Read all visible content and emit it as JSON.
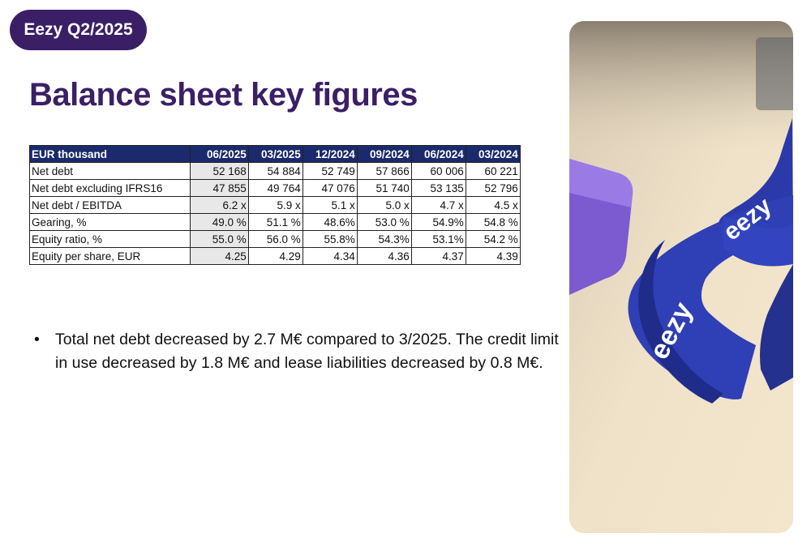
{
  "header": {
    "badge": "Eezy Q2/2025"
  },
  "title": "Balance sheet key figures",
  "table": {
    "columns": [
      "EUR thousand",
      "06/2025",
      "03/2025",
      "12/2024",
      "09/2024",
      "06/2024",
      "03/2024"
    ],
    "rows": [
      {
        "label": "Net debt",
        "values": [
          "52 168",
          "54 884",
          "52 749",
          "57 866",
          "60 006",
          "60 221"
        ]
      },
      {
        "label": "Net debt excluding IFRS16",
        "values": [
          "47 855",
          "49 764",
          "47 076",
          "51 740",
          "53 135",
          "52 796"
        ]
      },
      {
        "label": "Net debt / EBITDA",
        "values": [
          "6.2 x",
          "5.9 x",
          "5.1 x",
          "5.0 x",
          "4.7 x",
          "4.5 x"
        ]
      },
      {
        "label": "Gearing, %",
        "values": [
          "49.0 %",
          "51.1 %",
          "48.6%",
          "53.0 %",
          "54.9%",
          "54.8 %"
        ]
      },
      {
        "label": "Equity ratio, %",
        "values": [
          "55.0 %",
          "56.0 %",
          "55.8%",
          "54.3%",
          "53.1%",
          "54.2 %"
        ]
      },
      {
        "label": "Equity per share, EUR",
        "values": [
          "4.25",
          "4.29",
          "4.34",
          "4.36",
          "4.37",
          "4.39"
        ]
      }
    ]
  },
  "bullets": [
    "Total net debt decreased by 2.7 M€ compared to 3/2025. The credit limit in use decreased by 1.8 M€ and lease liabilities decreased by 0.8 M€."
  ],
  "bullet_marker": "•",
  "photo": {
    "brand_text": "eezy"
  },
  "colors": {
    "brand_purple": "#3b1f66",
    "table_header": "#1a2a6c",
    "lanyard_blue": "#2b3aa8",
    "highlight_column": "#e8e8e8"
  }
}
